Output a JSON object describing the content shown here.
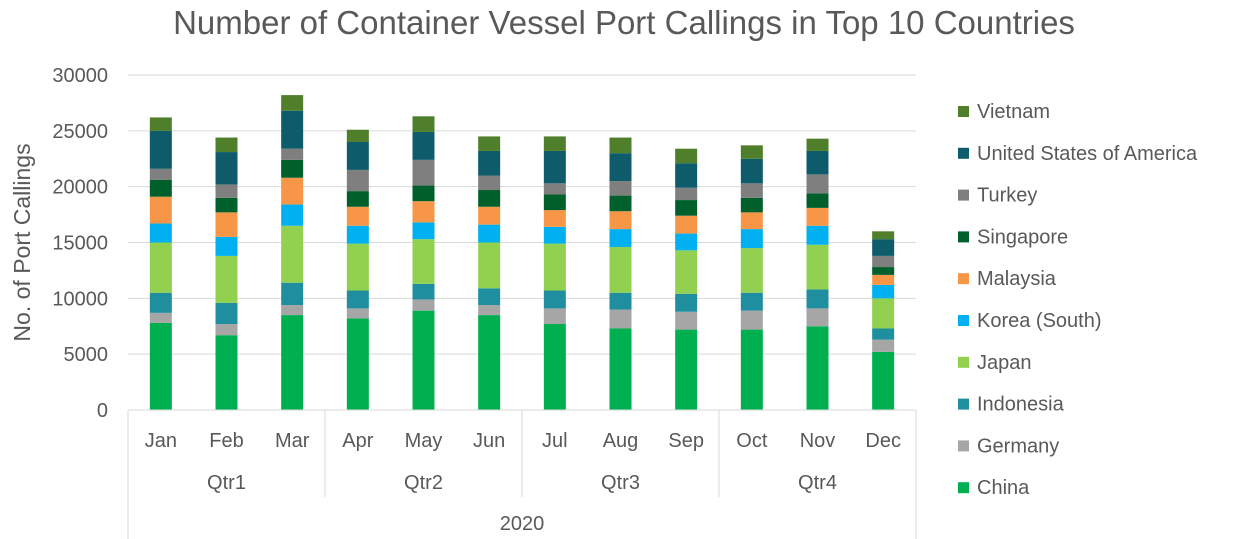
{
  "chart_data": {
    "type": "bar",
    "stacked": true,
    "title": "Number of Container Vessel Port Callings in Top 10 Countries",
    "xlabel": "",
    "ylabel": "No. of Port Callings",
    "ylim": [
      0,
      30000
    ],
    "yticks": [
      "0",
      "5000",
      "10000",
      "15000",
      "20000",
      "25000",
      "30000"
    ],
    "grid": true,
    "legend_position": "right",
    "categories": [
      "Jan",
      "Feb",
      "Mar",
      "Apr",
      "May",
      "Jun",
      "Jul",
      "Aug",
      "Sep",
      "Oct",
      "Nov",
      "Dec"
    ],
    "quarters": [
      {
        "label": "Qtr1",
        "months": 3
      },
      {
        "label": "Qtr2",
        "months": 3
      },
      {
        "label": "Qtr3",
        "months": 3
      },
      {
        "label": "Qtr4",
        "months": 3
      }
    ],
    "year": "2020",
    "series": [
      {
        "name": "China",
        "color": "#00b050",
        "values": [
          7800,
          6700,
          8500,
          8200,
          8900,
          8500,
          7700,
          7300,
          7200,
          7200,
          7500,
          5200
        ]
      },
      {
        "name": "Germany",
        "color": "#a6a6a6",
        "values": [
          900,
          1000,
          900,
          900,
          1000,
          900,
          1400,
          1700,
          1600,
          1700,
          1600,
          1100
        ]
      },
      {
        "name": "Indonesia",
        "color": "#1f8fa0",
        "values": [
          1800,
          1900,
          2000,
          1600,
          1400,
          1500,
          1600,
          1500,
          1600,
          1600,
          1700,
          1000
        ]
      },
      {
        "name": "Japan",
        "color": "#92d050",
        "values": [
          4500,
          4200,
          5100,
          4200,
          4000,
          4100,
          4200,
          4100,
          3900,
          4000,
          4000,
          2700
        ]
      },
      {
        "name": "Korea (South)",
        "color": "#00b0f0",
        "values": [
          1700,
          1700,
          1900,
          1600,
          1500,
          1600,
          1500,
          1600,
          1500,
          1700,
          1700,
          1200
        ]
      },
      {
        "name": "Malaysia",
        "color": "#f79646",
        "values": [
          2400,
          2200,
          2400,
          1700,
          1900,
          1600,
          1500,
          1600,
          1600,
          1500,
          1600,
          900
        ]
      },
      {
        "name": "Singapore",
        "color": "#00602b",
        "values": [
          1500,
          1300,
          1600,
          1400,
          1400,
          1500,
          1400,
          1400,
          1400,
          1300,
          1300,
          700
        ]
      },
      {
        "name": "Turkey",
        "color": "#7f7f7f",
        "values": [
          1000,
          1200,
          1000,
          1900,
          2300,
          1300,
          1000,
          1300,
          1100,
          1300,
          1700,
          1000
        ]
      },
      {
        "name": "United States of America",
        "color": "#0e5c6b",
        "values": [
          3400,
          2900,
          3400,
          2500,
          2500,
          2200,
          2900,
          2500,
          2200,
          2200,
          2100,
          1500
        ]
      },
      {
        "name": "Vietnam",
        "color": "#4f7f2a",
        "values": [
          1200,
          1300,
          1400,
          1100,
          1400,
          1300,
          1300,
          1400,
          1300,
          1200,
          1100,
          700
        ]
      }
    ]
  }
}
